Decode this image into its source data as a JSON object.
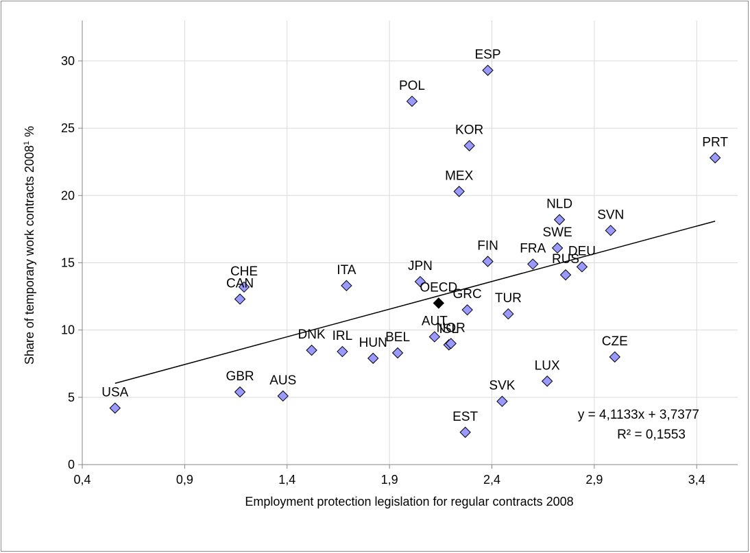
{
  "chart_data": {
    "type": "scatter",
    "title": "",
    "xlabel": "Employment protection legislation for regular contracts 2008",
    "ylabel_main": "Share of temporary work contracts 2008",
    "ylabel_sup": "1",
    "ylabel_unit": "%",
    "xlim": [
      0.4,
      3.6
    ],
    "ylim": [
      0,
      33
    ],
    "xticks": [
      "0,4",
      "0,9",
      "1,4",
      "1,9",
      "2,4",
      "2,9",
      "3,4"
    ],
    "yticks": [
      "0",
      "5",
      "10",
      "15",
      "20",
      "25",
      "30"
    ],
    "grid": true,
    "marker_color": "#9999ff",
    "highlight_color": "#000000",
    "trendline": {
      "slope": 4.1133,
      "intercept": 3.7377,
      "equation": "y = 4,1133x + 3,7377",
      "r2": "R² = 0,1553"
    },
    "points": [
      {
        "label": "USA",
        "x": 0.56,
        "y": 4.2
      },
      {
        "label": "GBR",
        "x": 1.17,
        "y": 5.4
      },
      {
        "label": "AUS",
        "x": 1.38,
        "y": 5.1
      },
      {
        "label": "CAN",
        "x": 1.17,
        "y": 12.3
      },
      {
        "label": "CHE",
        "x": 1.19,
        "y": 13.2
      },
      {
        "label": "DNK",
        "x": 1.52,
        "y": 8.5
      },
      {
        "label": "IRL",
        "x": 1.67,
        "y": 8.4
      },
      {
        "label": "ITA",
        "x": 1.69,
        "y": 13.3
      },
      {
        "label": "HUN",
        "x": 1.82,
        "y": 7.9
      },
      {
        "label": "BEL",
        "x": 1.94,
        "y": 8.3
      },
      {
        "label": "POL",
        "x": 2.01,
        "y": 27.0
      },
      {
        "label": "JPN",
        "x": 2.05,
        "y": 13.6
      },
      {
        "label": "AUT",
        "x": 2.12,
        "y": 9.5
      },
      {
        "label": "OECD",
        "x": 2.14,
        "y": 12.0,
        "highlight": true
      },
      {
        "label": "ISL",
        "x": 2.19,
        "y": 8.9
      },
      {
        "label": "NOR",
        "x": 2.2,
        "y": 9.0
      },
      {
        "label": "MEX",
        "x": 2.24,
        "y": 20.3
      },
      {
        "label": "EST",
        "x": 2.27,
        "y": 2.4
      },
      {
        "label": "GRC",
        "x": 2.28,
        "y": 11.5
      },
      {
        "label": "KOR",
        "x": 2.29,
        "y": 23.7
      },
      {
        "label": "ESP",
        "x": 2.38,
        "y": 29.3
      },
      {
        "label": "FIN",
        "x": 2.38,
        "y": 15.1
      },
      {
        "label": "SVK",
        "x": 2.45,
        "y": 4.7
      },
      {
        "label": "TUR",
        "x": 2.48,
        "y": 11.2
      },
      {
        "label": "FRA",
        "x": 2.6,
        "y": 14.9
      },
      {
        "label": "LUX",
        "x": 2.67,
        "y": 6.2
      },
      {
        "label": "SWE",
        "x": 2.72,
        "y": 16.1
      },
      {
        "label": "NLD",
        "x": 2.73,
        "y": 18.2
      },
      {
        "label": "RUS",
        "x": 2.76,
        "y": 14.1
      },
      {
        "label": "DEU",
        "x": 2.84,
        "y": 14.7
      },
      {
        "label": "SVN",
        "x": 2.98,
        "y": 17.4
      },
      {
        "label": "CZE",
        "x": 3.0,
        "y": 8.0
      },
      {
        "label": "PRT",
        "x": 3.49,
        "y": 22.8
      }
    ]
  }
}
